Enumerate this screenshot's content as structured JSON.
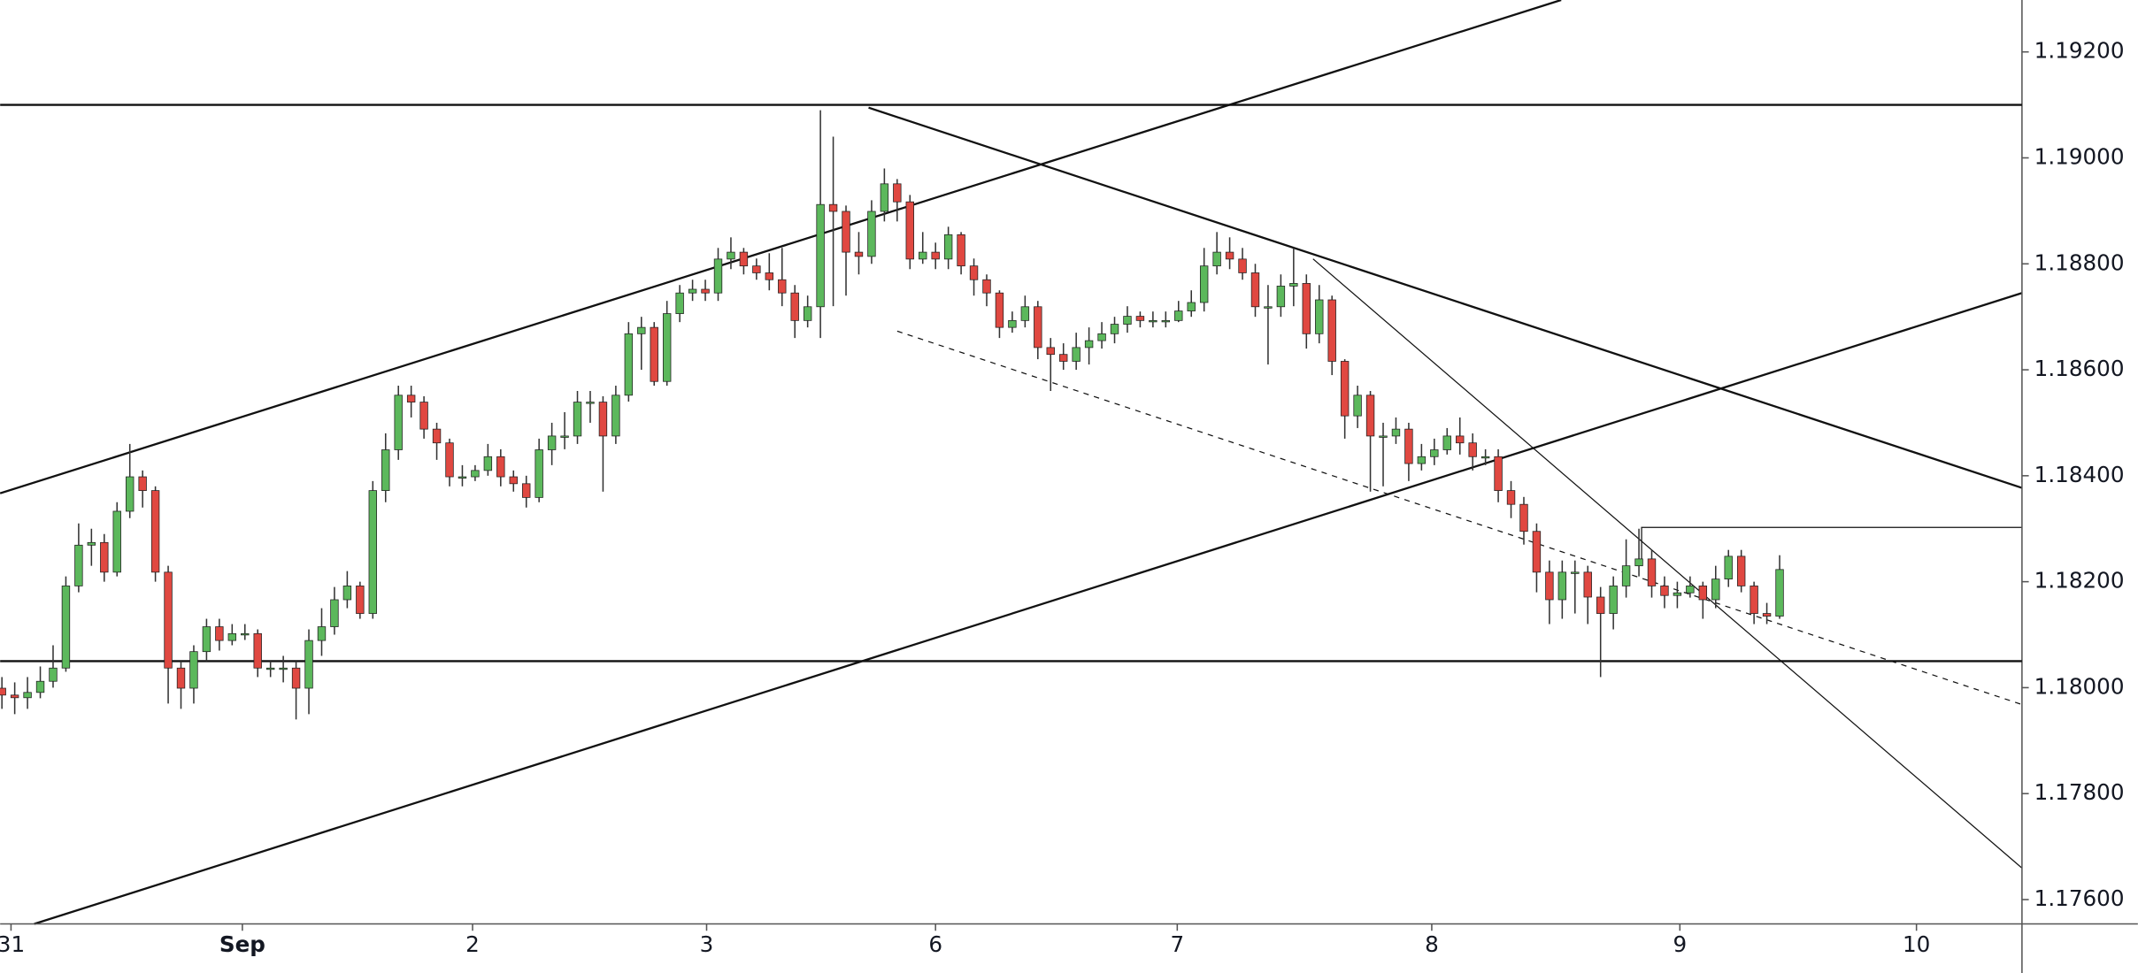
{
  "chart_data": {
    "type": "candlestick",
    "open": [
      1.17999,
      1.17986,
      1.17981,
      1.17991,
      1.18012,
      1.18037,
      1.18192,
      1.18269,
      1.18274,
      1.18218,
      1.18333,
      1.18398,
      1.18372,
      1.18218,
      1.18037,
      1.17999,
      1.18068,
      1.18115,
      1.18089,
      1.18102,
      1.18102,
      1.18037,
      1.18037,
      1.18037,
      1.17999,
      1.18089,
      1.18115,
      1.18166,
      1.18192,
      1.1814,
      1.18372,
      1.18449,
      1.18552,
      1.18539,
      1.18488,
      1.18462,
      1.18398,
      1.18398,
      1.1841,
      1.18436,
      1.18398,
      1.18385,
      1.18359,
      1.18449,
      1.18475,
      1.18475,
      1.18539,
      1.18539,
      1.18475,
      1.18552,
      1.18668,
      1.1868,
      1.18578,
      1.18706,
      1.18745,
      1.18752,
      1.18745,
      1.18809,
      1.18822,
      1.18796,
      1.18783,
      1.1877,
      1.18745,
      1.18693,
      1.18719,
      1.18912,
      1.18899,
      1.18822,
      1.18814,
      1.18899,
      1.18951,
      1.18917,
      1.18809,
      1.18822,
      1.18809,
      1.18855,
      1.18796,
      1.1877,
      1.18745,
      1.1868,
      1.18693,
      1.18719,
      1.18642,
      1.18629,
      1.18616,
      1.18642,
      1.18655,
      1.18668,
      1.18686,
      1.18701,
      1.18693,
      1.18693,
      1.18693,
      1.18711,
      1.18727,
      1.18796,
      1.18822,
      1.18809,
      1.18783,
      1.18719,
      1.18719,
      1.18758,
      1.18763,
      1.18668,
      1.18732,
      1.18616,
      1.18513,
      1.18552,
      1.18475,
      1.18475,
      1.18488,
      1.18423,
      1.18436,
      1.18449,
      1.18475,
      1.18462,
      1.18436,
      1.18436,
      1.18372,
      1.18346,
      1.18295,
      1.18218,
      1.18166,
      1.18218,
      1.18218,
      1.18171,
      1.1814,
      1.18192,
      1.1823,
      1.18243,
      1.18192,
      1.18174,
      1.18179,
      1.18192,
      1.18166,
      1.18205,
      1.18248,
      1.18192,
      1.1814,
      1.18135
    ],
    "high": [
      1.1802,
      1.1801,
      1.1802,
      1.1804,
      1.1808,
      1.1821,
      1.1831,
      1.183,
      1.1829,
      1.1835,
      1.1846,
      1.1841,
      1.1838,
      1.1823,
      1.1805,
      1.1808,
      1.1813,
      1.1813,
      1.1812,
      1.1812,
      1.1811,
      1.1805,
      1.1806,
      1.1805,
      1.1811,
      1.1815,
      1.1819,
      1.1822,
      1.182,
      1.1839,
      1.1848,
      1.1857,
      1.1857,
      1.1855,
      1.185,
      1.1847,
      1.1842,
      1.1842,
      1.1846,
      1.1845,
      1.1841,
      1.184,
      1.1847,
      1.185,
      1.1852,
      1.1856,
      1.1856,
      1.1855,
      1.1857,
      1.1869,
      1.187,
      1.1869,
      1.1873,
      1.1876,
      1.1877,
      1.1877,
      1.1883,
      1.1885,
      1.1883,
      1.1881,
      1.1882,
      1.1883,
      1.1876,
      1.1874,
      1.1909,
      1.1904,
      1.1891,
      1.1886,
      1.1892,
      1.1898,
      1.1896,
      1.1893,
      1.1886,
      1.1884,
      1.1887,
      1.1886,
      1.1881,
      1.1878,
      1.1875,
      1.1871,
      1.1874,
      1.1873,
      1.1866,
      1.1865,
      1.1867,
      1.1868,
      1.1869,
      1.187,
      1.1872,
      1.1871,
      1.1871,
      1.1871,
      1.1873,
      1.1875,
      1.1883,
      1.1886,
      1.1885,
      1.1883,
      1.188,
      1.1876,
      1.1878,
      1.1883,
      1.1878,
      1.1876,
      1.1874,
      1.1862,
      1.1857,
      1.1856,
      1.185,
      1.1851,
      1.185,
      1.1846,
      1.1847,
      1.1849,
      1.1851,
      1.1848,
      1.1845,
      1.1845,
      1.1839,
      1.1836,
      1.1831,
      1.1824,
      1.1824,
      1.1824,
      1.1823,
      1.1819,
      1.1821,
      1.1828,
      1.183,
      1.1826,
      1.1821,
      1.182,
      1.1821,
      1.182,
      1.1823,
      1.1826,
      1.1826,
      1.182,
      1.1816,
      1.1825
    ],
    "low": [
      1.1796,
      1.1795,
      1.1796,
      1.1798,
      1.18,
      1.1803,
      1.1818,
      1.1823,
      1.182,
      1.1821,
      1.1832,
      1.1834,
      1.182,
      1.1797,
      1.1796,
      1.1797,
      1.1805,
      1.1807,
      1.1808,
      1.1809,
      1.1802,
      1.1802,
      1.1801,
      1.1794,
      1.1795,
      1.1806,
      1.181,
      1.1815,
      1.1813,
      1.1813,
      1.1835,
      1.1843,
      1.1851,
      1.1847,
      1.1843,
      1.1838,
      1.1838,
      1.1839,
      1.184,
      1.1838,
      1.1837,
      1.1834,
      1.1835,
      1.1842,
      1.1845,
      1.1846,
      1.185,
      1.1837,
      1.1846,
      1.1854,
      1.186,
      1.1857,
      1.1857,
      1.1869,
      1.1873,
      1.1873,
      1.1873,
      1.1879,
      1.1878,
      1.1877,
      1.1875,
      1.1872,
      1.1866,
      1.1868,
      1.1866,
      1.1872,
      1.1874,
      1.1878,
      1.188,
      1.1888,
      1.1888,
      1.1879,
      1.188,
      1.1879,
      1.1879,
      1.1878,
      1.1874,
      1.1872,
      1.1866,
      1.1867,
      1.1868,
      1.1862,
      1.1856,
      1.186,
      1.186,
      1.1861,
      1.1864,
      1.1865,
      1.1867,
      1.1868,
      1.1868,
      1.1868,
      1.1869,
      1.187,
      1.1871,
      1.1878,
      1.1879,
      1.1877,
      1.187,
      1.1861,
      1.187,
      1.1872,
      1.1864,
      1.1865,
      1.1859,
      1.1847,
      1.1849,
      1.1837,
      1.1838,
      1.1846,
      1.1839,
      1.1841,
      1.1842,
      1.1844,
      1.1844,
      1.1841,
      1.1842,
      1.1835,
      1.1832,
      1.1827,
      1.1818,
      1.1812,
      1.1813,
      1.1814,
      1.1812,
      1.1802,
      1.1811,
      1.1817,
      1.1821,
      1.1817,
      1.1815,
      1.1815,
      1.1817,
      1.1813,
      1.1815,
      1.1819,
      1.1818,
      1.1812,
      1.1812,
      1.1813
    ],
    "close": [
      1.17986,
      1.17981,
      1.17991,
      1.18012,
      1.18037,
      1.18192,
      1.18269,
      1.18274,
      1.18218,
      1.18333,
      1.18398,
      1.18372,
      1.18218,
      1.18037,
      1.17999,
      1.18068,
      1.18115,
      1.18089,
      1.18102,
      1.18102,
      1.18037,
      1.18037,
      1.18037,
      1.17999,
      1.18089,
      1.18115,
      1.18166,
      1.18192,
      1.1814,
      1.18372,
      1.18449,
      1.18552,
      1.18539,
      1.18488,
      1.18462,
      1.18398,
      1.18398,
      1.1841,
      1.18436,
      1.18398,
      1.18385,
      1.18359,
      1.18449,
      1.18475,
      1.18475,
      1.18539,
      1.18539,
      1.18475,
      1.18552,
      1.18668,
      1.1868,
      1.18578,
      1.18706,
      1.18745,
      1.18752,
      1.18745,
      1.18809,
      1.18822,
      1.18796,
      1.18783,
      1.1877,
      1.18745,
      1.18693,
      1.18719,
      1.18912,
      1.18899,
      1.18822,
      1.18814,
      1.18899,
      1.18951,
      1.18917,
      1.18809,
      1.18822,
      1.18809,
      1.18855,
      1.18796,
      1.1877,
      1.18745,
      1.1868,
      1.18693,
      1.18719,
      1.18642,
      1.18629,
      1.18616,
      1.18642,
      1.18655,
      1.18668,
      1.18686,
      1.18701,
      1.18693,
      1.18693,
      1.18693,
      1.18711,
      1.18727,
      1.18796,
      1.18822,
      1.18809,
      1.18783,
      1.18719,
      1.18719,
      1.18758,
      1.18763,
      1.18668,
      1.18732,
      1.18616,
      1.18513,
      1.18552,
      1.18475,
      1.18475,
      1.18488,
      1.18423,
      1.18436,
      1.18449,
      1.18475,
      1.18462,
      1.18436,
      1.18436,
      1.18372,
      1.18346,
      1.18295,
      1.18218,
      1.18166,
      1.18218,
      1.18218,
      1.18171,
      1.1814,
      1.18192,
      1.1823,
      1.18243,
      1.18192,
      1.18174,
      1.18179,
      1.18192,
      1.18166,
      1.18205,
      1.18248,
      1.18192,
      1.1814,
      1.18135,
      1.18223
    ],
    "up_color": "#5cb85c",
    "down_color": "#e04841",
    "levels": [
      1.191,
      1.1805
    ],
    "xlim": [
      -0.14,
      157.95
    ],
    "xticks": [
      {
        "value": 0.71,
        "label": "31"
      },
      {
        "value": 18.8,
        "label": "Sep"
      },
      {
        "value": 36.8,
        "label": "2"
      },
      {
        "value": 55.1,
        "label": "3"
      },
      {
        "value": 73,
        "label": "6"
      },
      {
        "value": 91.9,
        "label": "7"
      },
      {
        "value": 111.8,
        "label": "8"
      },
      {
        "value": 131.2,
        "label": "9"
      },
      {
        "value": 149.7,
        "label": "10"
      }
    ],
    "ylim": [
      1.17554,
      1.19298
    ],
    "yticks": [
      {
        "value": 1.192,
        "label": "1.19200"
      },
      {
        "value": 1.19,
        "label": "1.19000"
      },
      {
        "value": 1.188,
        "label": "1.18800"
      },
      {
        "value": 1.186,
        "label": "1.18600"
      },
      {
        "value": 1.184,
        "label": "1.18400"
      },
      {
        "value": 1.182,
        "label": "1.18200"
      },
      {
        "value": 1.18,
        "label": "1.18000"
      },
      {
        "value": 1.178,
        "label": "1.17800"
      },
      {
        "value": 1.176,
        "label": "1.17600"
      }
    ]
  }
}
